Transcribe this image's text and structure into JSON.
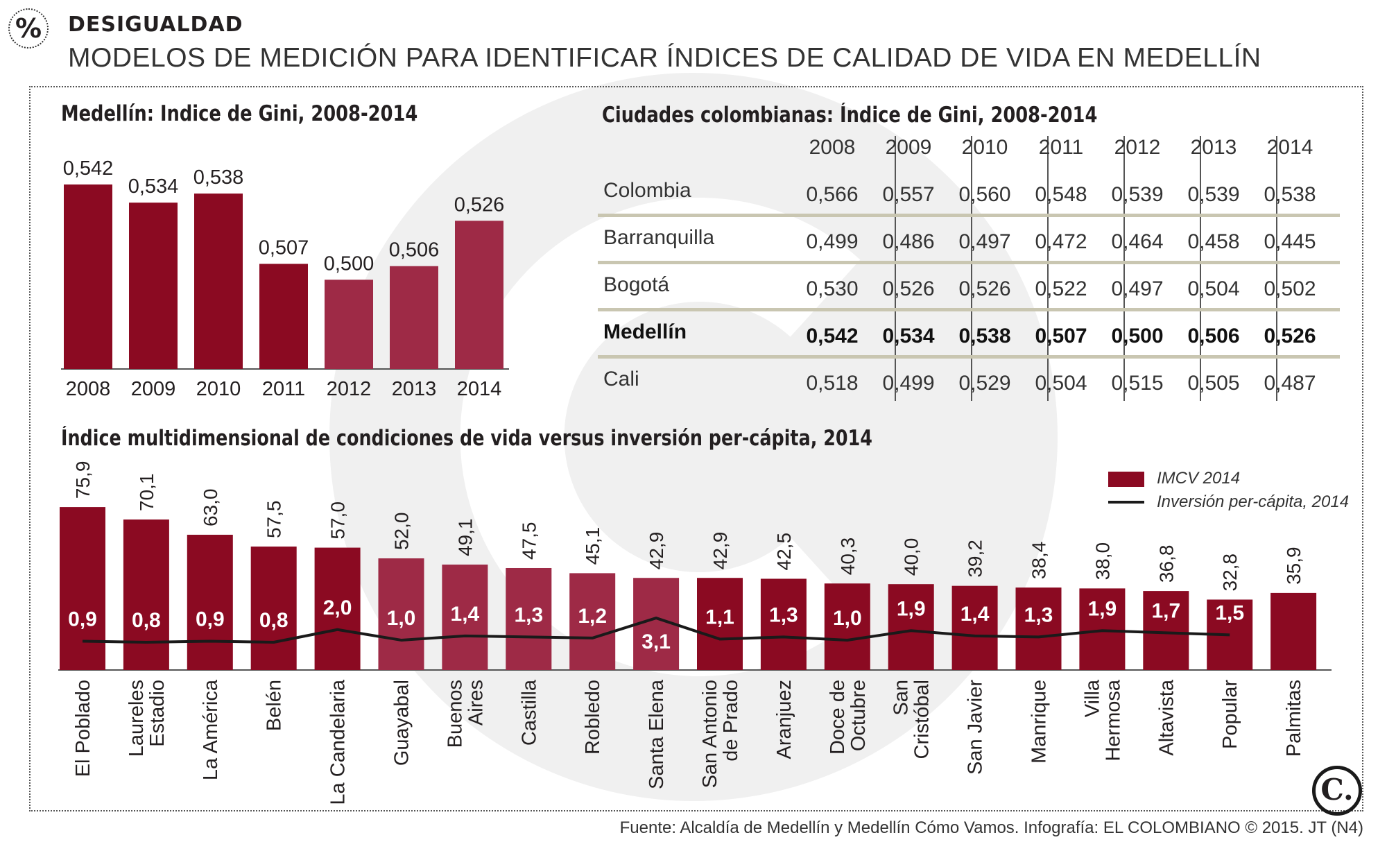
{
  "header": {
    "badge": "%",
    "kicker": "DESIGUALDAD",
    "title": "MODELOS DE MEDICIÓN PARA IDENTIFICAR ÍNDICES DE CALIDAD DE VIDA EN MEDELLÍN"
  },
  "sections": {
    "gini_medellin_title": "Medellín: Indice de Gini, 2008-2014",
    "gini_cities_title": "Ciudades colombianas: Índice de Gini, 2008-2014",
    "imcv_title": "Índice multidimensional de condiciones de vida versus inversión per-cápita, 2014"
  },
  "legend": {
    "bar_label": "IMCV 2014",
    "line_label": "Inversión per-cápita, 2014"
  },
  "source": "Fuente: Alcaldía de Medellín y Medellín Cómo Vamos. Infografía: EL COLOMBIANO © 2015. JT (N4)",
  "logo": "C.",
  "colors": {
    "bar_dark": "#8b0a22",
    "bar_light": "#9e2a46",
    "line": "#1a1a1a",
    "table_rule": "#c9c6b1"
  },
  "chart_data": [
    {
      "type": "bar",
      "title": "Medellín: Indice de Gini, 2008-2014",
      "categories": [
        "2008",
        "2009",
        "2010",
        "2011",
        "2012",
        "2013",
        "2014"
      ],
      "values": [
        0.542,
        0.534,
        0.538,
        0.507,
        0.5,
        0.506,
        0.526
      ],
      "value_labels": [
        "0,542",
        "0,534",
        "0,538",
        "0,507",
        "0,500",
        "0,506",
        "0,526"
      ],
      "ylim": [
        0.46,
        0.55
      ]
    },
    {
      "type": "table",
      "title": "Ciudades colombianas: Índice de Gini, 2008-2014",
      "columns": [
        "2008",
        "2009",
        "2010",
        "2011",
        "2012",
        "2013",
        "2014"
      ],
      "rows": [
        {
          "name": "Colombia",
          "values": [
            "0,566",
            "0,557",
            "0,560",
            "0,548",
            "0,539",
            "0,539",
            "0,538"
          ]
        },
        {
          "name": "Barranquilla",
          "values": [
            "0,499",
            "0,486",
            "0,497",
            "0,472",
            "0,464",
            "0,458",
            "0,445"
          ]
        },
        {
          "name": "Bogotá",
          "values": [
            "0,530",
            "0,526",
            "0,526",
            "0,522",
            "0,497",
            "0,504",
            "0,502"
          ]
        },
        {
          "name": "Medellín",
          "values": [
            "0,542",
            "0,534",
            "0,538",
            "0,507",
            "0,500",
            "0,506",
            "0,526"
          ],
          "bold": true
        },
        {
          "name": "Cali",
          "values": [
            "0,518",
            "0,499",
            "0,529",
            "0,504",
            "0,515",
            "0,505",
            "0,487"
          ]
        }
      ]
    },
    {
      "type": "bar",
      "title": "Índice multidimensional de condiciones de vida versus inversión per-cápita, 2014",
      "categories": [
        "El Poblado",
        "Laureles Estadio",
        "La América",
        "Belén",
        "La Candelaria",
        "Guayabal",
        "Buenos Aires",
        "Castilla",
        "Robledo",
        "Santa Elena",
        "San Antonio de Prado",
        "Aranjuez",
        "Doce de Octubre",
        "San Cristóbal",
        "San Javier",
        "Manrique",
        "Villa Hermosa",
        "Altavista",
        "Popular",
        "Palmitas"
      ],
      "category_lines": [
        [
          "El Poblado"
        ],
        [
          "Laureles",
          "Estadio"
        ],
        [
          "La América"
        ],
        [
          "Belén"
        ],
        [
          "La Candelaria"
        ],
        [
          "Guayabal"
        ],
        [
          "Buenos",
          "Aires"
        ],
        [
          "Castilla"
        ],
        [
          "Robledo"
        ],
        [
          "Santa Elena"
        ],
        [
          "San Antonio",
          "de Prado"
        ],
        [
          "Aranjuez"
        ],
        [
          "Doce de",
          "Octubre"
        ],
        [
          "San",
          "Cristóbal"
        ],
        [
          "San Javier"
        ],
        [
          "Manrique"
        ],
        [
          "Villa",
          "Hermosa"
        ],
        [
          "Altavista"
        ],
        [
          "Popular"
        ],
        [
          "Palmitas"
        ]
      ],
      "series": [
        {
          "name": "IMCV 2014",
          "type": "bar",
          "values": [
            75.9,
            70.1,
            63.0,
            57.5,
            57.0,
            52.0,
            49.1,
            47.5,
            45.1,
            42.9,
            42.9,
            42.5,
            40.3,
            40.0,
            39.2,
            38.4,
            38.0,
            36.8,
            32.8,
            35.9
          ],
          "labels": [
            "75,9",
            "70,1",
            "63,0",
            "57,5",
            "57,0",
            "52,0",
            "49,1",
            "47,5",
            "45,1",
            "42,9",
            "42,9",
            "42,5",
            "40,3",
            "40,0",
            "39,2",
            "38,4",
            "38,0",
            "36,8",
            "32,8",
            "35,9"
          ]
        },
        {
          "name": "Inversión per-cápita, 2014",
          "type": "line",
          "values": [
            0.9,
            0.8,
            0.9,
            0.8,
            2.0,
            1.0,
            1.4,
            1.3,
            1.2,
            3.1,
            1.1,
            1.3,
            1.0,
            1.9,
            1.4,
            1.3,
            1.9,
            1.7,
            1.5,
            null
          ],
          "labels": [
            "0,9",
            "0,8",
            "0,9",
            "0,8",
            "2,0",
            "1,0",
            "1,4",
            "1,3",
            "1,2",
            "3,1",
            "1,1",
            "1,3",
            "1,0",
            "1,9",
            "1,4",
            "1,3",
            "1,9",
            "1,7",
            "1,5",
            ""
          ]
        }
      ],
      "legend": "top-right"
    }
  ]
}
